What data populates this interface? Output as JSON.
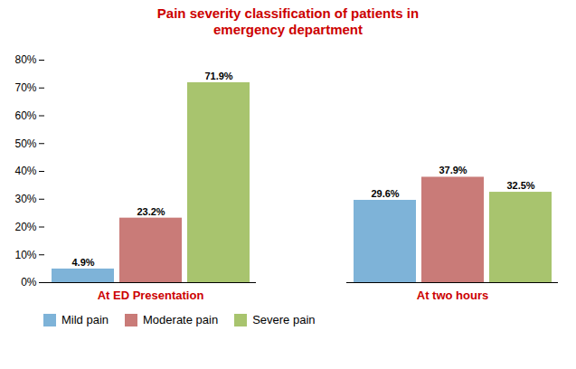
{
  "chart_data": {
    "type": "bar",
    "title": "Pain severity classification of patients in\nemergency department",
    "categories": [
      "At ED Presentation",
      "At two hours"
    ],
    "series": [
      {
        "name": "Mild pain",
        "color": "#7eb3d8",
        "values": [
          4.9,
          29.6
        ],
        "value_labels": [
          "4.9%",
          "29.6%"
        ]
      },
      {
        "name": "Moderate pain",
        "color": "#c97b78",
        "values": [
          23.2,
          37.9
        ],
        "value_labels": [
          "23.2%",
          "37.9%"
        ]
      },
      {
        "name": "Severe pain",
        "color": "#a8c46e",
        "values": [
          71.9,
          32.5
        ],
        "value_labels": [
          "71.9%",
          "32.5%"
        ]
      }
    ],
    "ylim": [
      0,
      80
    ],
    "yticks": [
      {
        "value": 0,
        "label": "0%"
      },
      {
        "value": 10,
        "label": "10%"
      },
      {
        "value": 20,
        "label": "20%"
      },
      {
        "value": 30,
        "label": "30%"
      },
      {
        "value": 40,
        "label": "40%"
      },
      {
        "value": 50,
        "label": "50%"
      },
      {
        "value": 60,
        "label": "60%"
      },
      {
        "value": 70,
        "label": "70%"
      },
      {
        "value": 80,
        "label": "80%"
      }
    ],
    "grid": false,
    "legend": "bottom",
    "data_labels": true
  }
}
